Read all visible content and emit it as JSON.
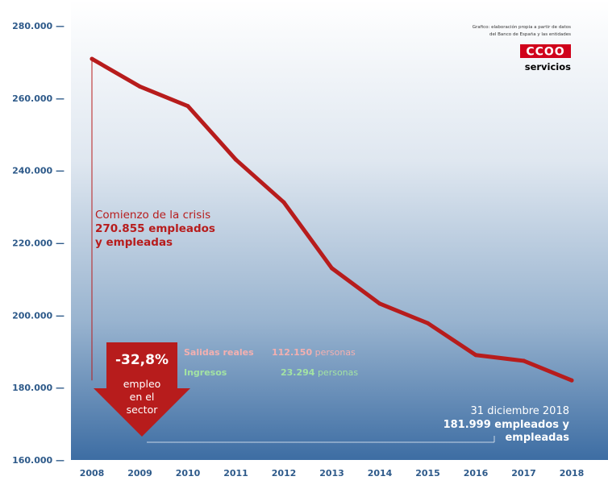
{
  "source_note": [
    "Grafico: elaboración propia a partir de datos",
    "del Banco de España y las entidades"
  ],
  "logo": {
    "text": "CCOO",
    "subtitle": "servicios"
  },
  "colors": {
    "line": "#b71c1c",
    "axis_text": "#2e5a8a",
    "bg_top": "#ffffff",
    "bg_bottom": "#3d6da3",
    "start_label": "#b71c1c",
    "arrow": "#b71c1c",
    "salidas": "#f4b0b0",
    "ingresos": "#a3e3a3",
    "end_label": "#ffffff"
  },
  "annotations": {
    "start": {
      "line1": "Comienzo de la crisis",
      "line2": "270.855 empleados",
      "line3": "y empleadas"
    },
    "end": {
      "line1": "31 diciembre 2018",
      "line2": "181.999 empleados y",
      "line3": "empleadas"
    },
    "arrow": {
      "value": "-32,8%",
      "line1": "empleo",
      "line2": "en el",
      "line3": "sector"
    },
    "salidas": {
      "label": "Salidas reales",
      "value": "112.150",
      "unit": "personas"
    },
    "ingresos": {
      "label": "Ingresos",
      "value": "23.294",
      "unit": "personas"
    }
  },
  "chart_data": {
    "type": "line",
    "x": [
      2008,
      2009,
      2010,
      2011,
      2012,
      2013,
      2014,
      2015,
      2016,
      2017,
      2018
    ],
    "x_tick_labels": [
      "2008",
      "2009",
      "2010",
      "2011",
      "2012",
      "2013",
      "2014",
      "2015",
      "2016",
      "2017",
      "2018"
    ],
    "series": [
      {
        "values": [
          270855,
          263200,
          257800,
          243000,
          231200,
          213000,
          203200,
          197800,
          189000,
          187400,
          181999
        ]
      }
    ],
    "ylim": [
      160000,
      280000
    ],
    "y_ticks": [
      160000,
      180000,
      200000,
      220000,
      240000,
      260000,
      280000
    ],
    "y_tick_labels": [
      "160.000",
      "180.000",
      "200.000",
      "220.000",
      "240.000",
      "260.000",
      "280.000"
    ],
    "grid": false,
    "legend": "none"
  }
}
